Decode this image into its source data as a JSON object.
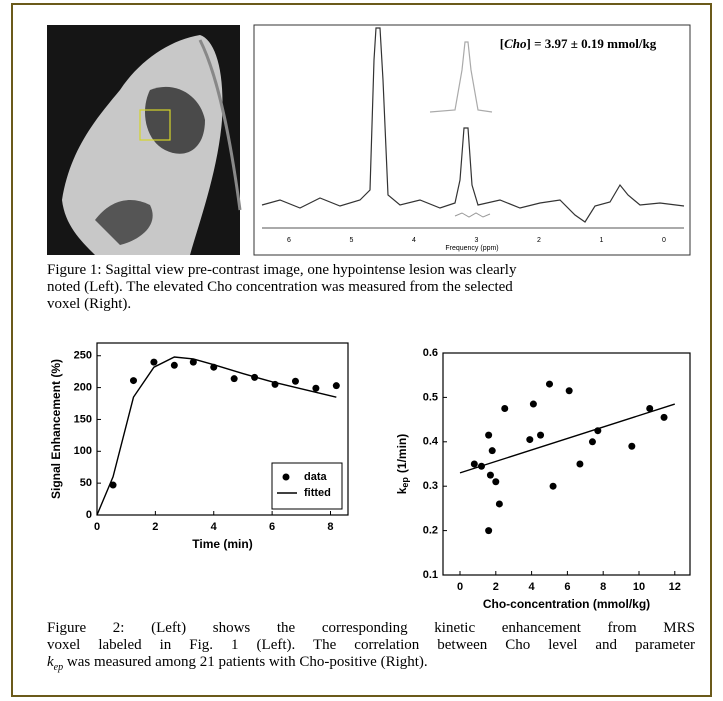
{
  "figure1": {
    "annotation": {
      "open": "[",
      "name": "Cho",
      "rest": "] = 3.97 ± 0.19 mmol/kg"
    },
    "frequency_axis": {
      "label": "Frequency (ppm)",
      "ticks": [
        6,
        5,
        4,
        3,
        2,
        1,
        0
      ]
    },
    "caption": [
      "Figure 1: Sagittal view pre-contrast image, one hypointense lesion was clearly",
      "noted (Left). The elevated Cho concentration was measured from the selected",
      "voxel (Right)."
    ]
  },
  "chart_data": [
    {
      "type": "line",
      "xlabel": "Time (min)",
      "ylabel": "Signal Enhancement (%)",
      "xlim": [
        0,
        8.6
      ],
      "xticks": [
        0,
        2,
        4,
        6,
        8
      ],
      "ylim": [
        0,
        270
      ],
      "yticks": [
        0,
        50,
        100,
        150,
        200,
        250
      ],
      "legend": "lower right",
      "series": [
        {
          "name": "data",
          "type": "scatter",
          "color": "#000000",
          "x": [
            0.55,
            1.25,
            1.95,
            2.65,
            3.3,
            4.0,
            4.7,
            5.4,
            6.1,
            6.8,
            7.5,
            8.2
          ],
          "values": [
            47,
            211,
            240,
            235,
            240,
            232,
            214,
            216,
            205,
            210,
            199,
            203
          ]
        },
        {
          "name": "fitted",
          "type": "line",
          "color": "#000000",
          "x": [
            0,
            0.55,
            1.25,
            1.95,
            2.65,
            3.3,
            4.0,
            5.0,
            6.0,
            7.0,
            8.2
          ],
          "values": [
            0,
            60,
            185,
            232,
            248,
            245,
            236,
            222,
            209,
            198,
            185
          ]
        }
      ]
    },
    {
      "type": "scatter",
      "xlabel": "Cho-concentration (mmol/kg)",
      "ylabel": {
        "main": "k",
        "sub": "ep",
        "rest": "(1/min)"
      },
      "xlim": [
        -0.95,
        12.85
      ],
      "xticks": [
        0,
        2,
        4,
        6,
        8,
        10,
        12
      ],
      "ylim": [
        0.1,
        0.6
      ],
      "yticks": [
        0.1,
        0.2,
        0.3,
        0.4,
        0.5,
        0.6
      ],
      "series": [
        {
          "type": "scatter",
          "color": "#000000",
          "x": [
            0.8,
            1.2,
            1.6,
            1.6,
            1.7,
            1.8,
            2.0,
            2.2,
            2.5,
            3.9,
            4.1,
            4.5,
            5.0,
            5.2,
            6.1,
            6.7,
            7.4,
            7.7,
            9.6,
            10.6,
            11.4
          ],
          "values": [
            0.35,
            0.345,
            0.2,
            0.415,
            0.325,
            0.38,
            0.31,
            0.26,
            0.475,
            0.405,
            0.485,
            0.415,
            0.53,
            0.3,
            0.515,
            0.35,
            0.4,
            0.425,
            0.39,
            0.475,
            0.455
          ]
        },
        {
          "type": "line",
          "color": "#000000",
          "x": [
            0,
            12
          ],
          "values": [
            0.33,
            0.485
          ]
        }
      ]
    }
  ],
  "figure2": {
    "caption": {
      "line1": "Figure 2: (Left) shows the corresponding kinetic enhancement from MRS",
      "line2": "voxel labeled in Fig. 1 (Left). The correlation between Cho level and parameter",
      "k": "k",
      "sub": "ep",
      "line3": " was measured among 21 patients with Cho-positive (Right)."
    }
  }
}
